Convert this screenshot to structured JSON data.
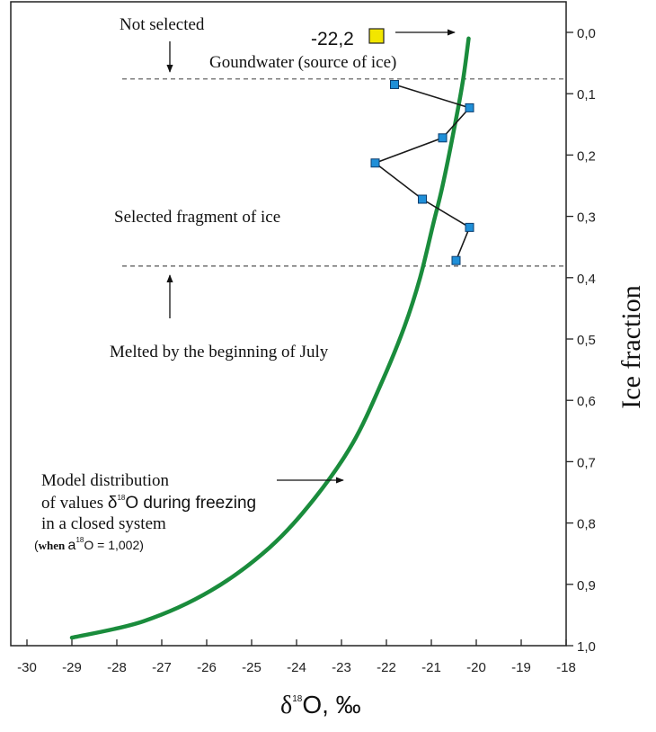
{
  "chart_data": {
    "type": "line",
    "title": "",
    "xlabel": "δ18O, ‰",
    "ylabel": "Ice fraction",
    "xlim": [
      -30,
      -18
    ],
    "ylim": [
      0.0,
      1.0
    ],
    "y_inverted": true,
    "y_axis_side": "right",
    "grid": false,
    "x_ticks": [
      -30,
      -29,
      -28,
      -27,
      -26,
      -25,
      -24,
      -23,
      -22,
      -21,
      -20,
      -19,
      -18
    ],
    "y_ticks": [
      0.0,
      0.1,
      0.2,
      0.3,
      0.4,
      0.5,
      0.6,
      0.7,
      0.8,
      0.9,
      1.0
    ],
    "y_tick_labels": [
      "0,0",
      "0,1",
      "0,2",
      "0,3",
      "0,4",
      "0,5",
      "0,6",
      "0,7",
      "0,8",
      "0,9",
      "1,0"
    ],
    "series": [
      {
        "kind": "model-curve",
        "color": "#1a8c3c",
        "points": [
          {
            "x": -20.17,
            "y": 0.01
          },
          {
            "x": -20.3,
            "y": 0.08
          },
          {
            "x": -20.5,
            "y": 0.16
          },
          {
            "x": -20.75,
            "y": 0.25
          },
          {
            "x": -20.95,
            "y": 0.31
          },
          {
            "x": -21.25,
            "y": 0.4
          },
          {
            "x": -21.6,
            "y": 0.48
          },
          {
            "x": -22.1,
            "y": 0.57
          },
          {
            "x": -22.75,
            "y": 0.67
          },
          {
            "x": -23.6,
            "y": 0.76
          },
          {
            "x": -24.6,
            "y": 0.84
          },
          {
            "x": -25.9,
            "y": 0.91
          },
          {
            "x": -27.4,
            "y": 0.96
          },
          {
            "x": -29.0,
            "y": 0.987
          }
        ]
      },
      {
        "kind": "measured-ice",
        "color": "#1f8fd8",
        "points": [
          {
            "x": -21.82,
            "y": 0.085
          },
          {
            "x": -20.15,
            "y": 0.123
          },
          {
            "x": -20.75,
            "y": 0.172
          },
          {
            "x": -22.25,
            "y": 0.213
          },
          {
            "x": -21.2,
            "y": 0.272
          },
          {
            "x": -20.15,
            "y": 0.318
          },
          {
            "x": -20.45,
            "y": 0.372
          }
        ]
      }
    ],
    "reference_lines": [
      {
        "axis": "y",
        "value": 0.076,
        "style": "dashed"
      },
      {
        "axis": "y",
        "value": 0.381,
        "style": "dashed"
      }
    ],
    "source_marker": {
      "value_label": "-22,2",
      "x": -22.2,
      "y": 0.01,
      "color": "#f2e600"
    },
    "annotations": {
      "not_selected": "Not selected",
      "groundwater": "Goundwater (source of ice)",
      "selected_fragment": "Selected fragment of ice",
      "melted": "Melted by the beginning of July",
      "model_line1": "Model distribution",
      "model_line2_prefix": "of values ",
      "model_line2_suffix": "O  during freezing",
      "model_line3": "in a closed system",
      "model_line4_open": "(",
      "model_line4_when": "when ",
      "model_line4_alpha": "a",
      "model_line4_sup": "18",
      "model_line4_rest": "O = 1,002)",
      "delta_symbol": "δ",
      "delta_sup": "18",
      "xlabel_sup": "18",
      "xlabel_rest": "O, ‰"
    }
  }
}
